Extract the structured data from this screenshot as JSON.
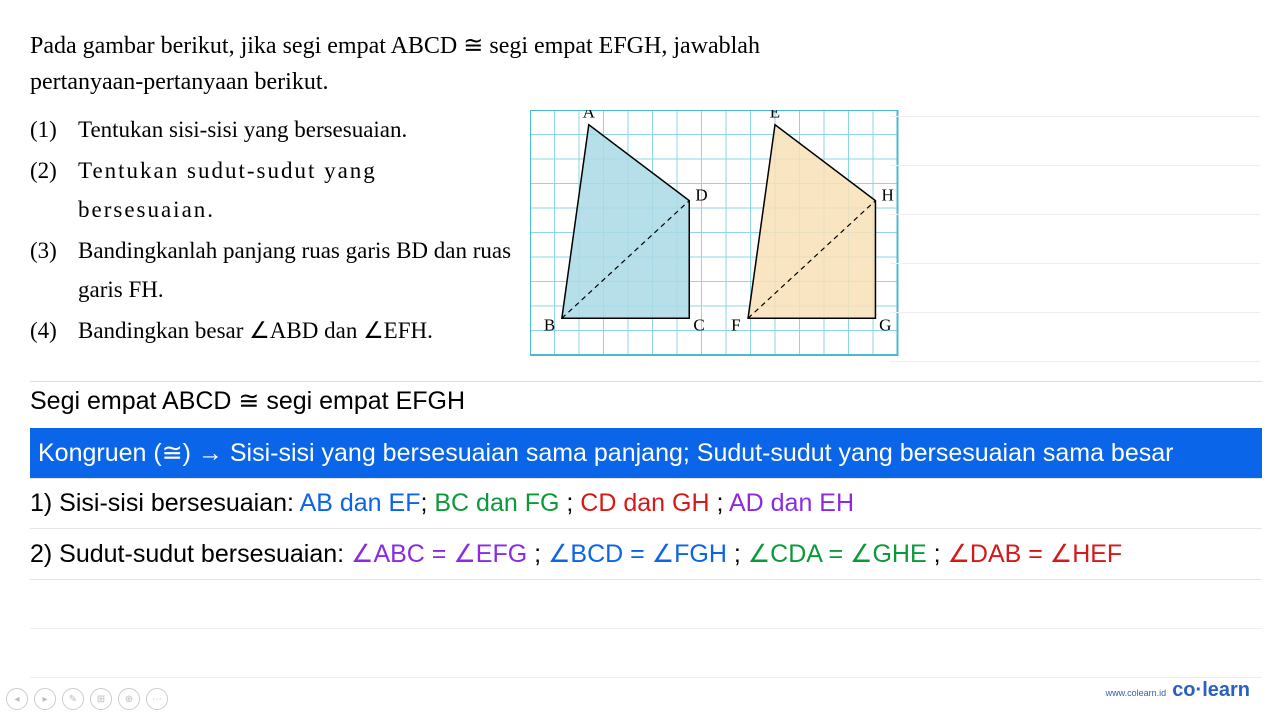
{
  "problem": {
    "intro": "Pada gambar berikut, jika segi empat ABCD ≅ segi empat EFGH, jawablah pertanyaan-pertanyaan berikut.",
    "items": [
      {
        "num": "(1)",
        "text": "Tentukan sisi-sisi yang bersesuaian."
      },
      {
        "num": "(2)",
        "text": "Tentukan sudut-sudut yang bersesuaian."
      },
      {
        "num": "(3)",
        "text": "Bandingkanlah panjang ruas garis BD dan ruas garis FH."
      },
      {
        "num": "(4)",
        "text": "Bandingkan besar ∠ABD dan ∠EFH."
      }
    ]
  },
  "diagram": {
    "grid": {
      "cols": 15,
      "rows": 10,
      "cell": 24.5,
      "line_color": "#8ed6e6",
      "border_color": "#4bbad1"
    },
    "shapes": [
      {
        "label_set": "ABCD",
        "fill": "#a9d9e5",
        "stroke": "#000",
        "points": [
          [
            2.4,
            0.6
          ],
          [
            6.5,
            3.7
          ],
          [
            6.5,
            8.5
          ],
          [
            1.3,
            8.5
          ]
        ],
        "dashed": [
          [
            1.3,
            8.5
          ],
          [
            6.5,
            3.7
          ]
        ],
        "labels": {
          "A": [
            2.4,
            0.3
          ],
          "D": [
            7.0,
            3.7
          ],
          "C": [
            6.9,
            9.0
          ],
          "B": [
            0.8,
            9.0
          ]
        }
      },
      {
        "label_set": "EFGH",
        "fill": "#f8e1b6",
        "stroke": "#000",
        "points": [
          [
            10.0,
            0.6
          ],
          [
            14.1,
            3.7
          ],
          [
            14.1,
            8.5
          ],
          [
            8.9,
            8.5
          ]
        ],
        "dashed": [
          [
            8.9,
            8.5
          ],
          [
            14.1,
            3.7
          ]
        ],
        "labels": {
          "E": [
            10.0,
            0.3
          ],
          "H": [
            14.6,
            3.7
          ],
          "G": [
            14.5,
            9.0
          ],
          "F": [
            8.4,
            9.0
          ]
        }
      }
    ]
  },
  "solution": {
    "header": "Segi empat ABCD ≅  segi empat EFGH",
    "definition": "Kongruen (≅) → Sisi-sisi yang bersesuaian sama panjang; Sudut-sudut yang bersesuaian sama besar",
    "row1": {
      "prefix": "1) Sisi-sisi bersesuaian:  ",
      "parts": [
        {
          "text": "AB dan EF",
          "color": "#0a65e8"
        },
        {
          "text": "; ",
          "color": "#000"
        },
        {
          "text": "BC dan FG",
          "color": "#0a9a3a"
        },
        {
          "text": " ; ",
          "color": "#000"
        },
        {
          "text": "CD dan GH",
          "color": "#d81818"
        },
        {
          "text": " ; ",
          "color": "#000"
        },
        {
          "text": "AD dan EH",
          "color": "#8a2be2"
        }
      ]
    },
    "row2": {
      "prefix": "2) Sudut-sudut bersesuaian:  ",
      "parts": [
        {
          "text": "∠ABC = ∠EFG",
          "color": "#8a2be2"
        },
        {
          "text": " ; ",
          "color": "#000"
        },
        {
          "text": "∠BCD = ∠FGH",
          "color": "#0a65e8"
        },
        {
          "text": " ; ",
          "color": "#000"
        },
        {
          "text": "∠CDA = ∠GHE",
          "color": "#0a9a3a"
        },
        {
          "text": " ; ",
          "color": "#000"
        },
        {
          "text": "∠DAB = ∠HEF",
          "color": "#d81818"
        }
      ]
    }
  },
  "brand": {
    "small": "www.colearn.id",
    "main": "co·learn"
  }
}
